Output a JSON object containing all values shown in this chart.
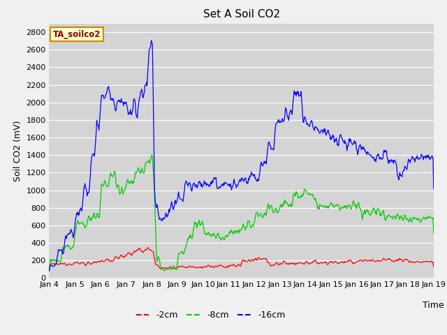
{
  "title": "Set A Soil CO2",
  "ylabel": "Soil CO2 (mV)",
  "xlabel": "Time",
  "legend_label": "TA_soilco2",
  "ylim": [
    0,
    2900
  ],
  "fig_facecolor": "#f0f0f0",
  "plot_bg_color": "#d4d4d4",
  "grid_color": "#ffffff",
  "series": {
    "red": {
      "label": "-2cm",
      "color": "#ff0000"
    },
    "green": {
      "label": "-8cm",
      "color": "#00cc00"
    },
    "blue": {
      "label": "-16cm",
      "color": "#0000ff"
    }
  },
  "xtick_labels": [
    "Jan 4",
    "Jan 5",
    "Jan 6",
    "Jan 7",
    "Jan 8",
    "Jan 9",
    "Jan 10",
    "Jan 11",
    "Jan 12",
    "Jan 13",
    "Jan 14",
    "Jan 15",
    "Jan 16",
    "Jan 17",
    "Jan 18",
    "Jan 19"
  ],
  "ytick_vals": [
    0,
    200,
    400,
    600,
    800,
    1000,
    1200,
    1400,
    1600,
    1800,
    2000,
    2200,
    2400,
    2600,
    2800
  ],
  "n_days": 15,
  "ppd": 48
}
